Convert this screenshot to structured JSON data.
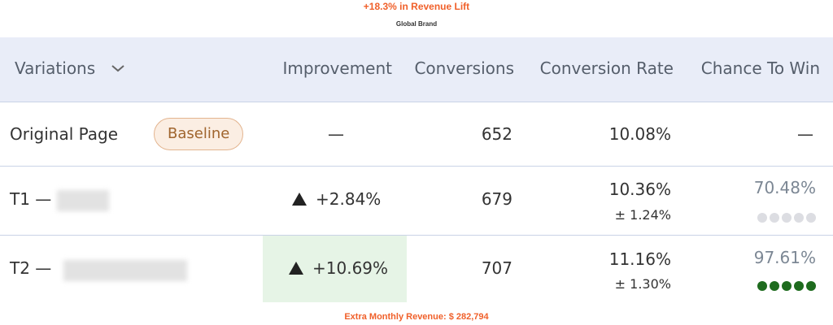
{
  "header": {
    "title": "+18.3% in Revenue Lift",
    "subtitle": "Global Brand"
  },
  "table": {
    "columns": [
      "Variations",
      "Improvement",
      "Conversions",
      "Conversion Rate",
      "Chance To Win"
    ],
    "rows": [
      {
        "name": "Original Page",
        "badge": "Baseline",
        "improvement": "—",
        "conversions": 652,
        "conversion_rate": "10.08%",
        "chance_to_win": "—"
      },
      {
        "name": "T1 —",
        "improvement": "+2.84%",
        "conversions": 679,
        "conversion_rate": "10.36%",
        "margin": "± 1.24%",
        "chance_to_win": "70.48%"
      },
      {
        "name": "T2 —",
        "improvement": "+10.69%",
        "conversions": 707,
        "conversion_rate": "11.16%",
        "margin": "± 1.30%",
        "chance_to_win": "97.61%"
      }
    ]
  },
  "footer": "Extra Monthly Revenue: $ 282,794"
}
